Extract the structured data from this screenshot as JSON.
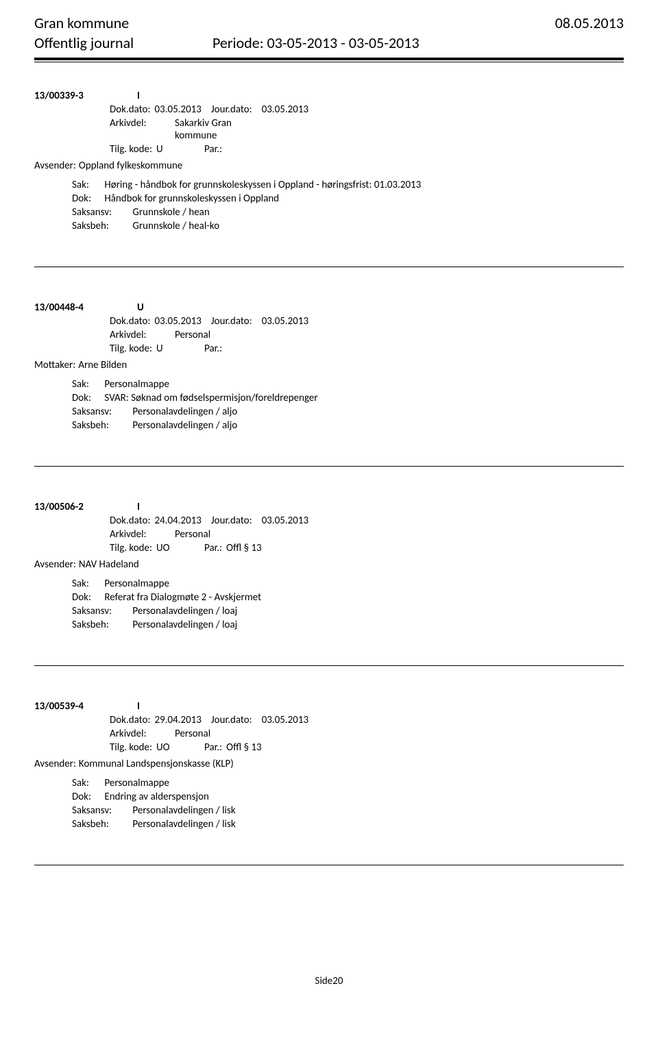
{
  "header": {
    "org": "Gran kommune",
    "date": "08.05.2013",
    "journal_label": "Offentlig journal",
    "period_label": "Periode:",
    "period_value": "03-05-2013 - 03-05-2013"
  },
  "labels": {
    "dokdato": "Dok.dato:",
    "jourdato": "Jour.dato:",
    "arkivdel": "Arkivdel:",
    "tilgkode": "Tilg. kode:",
    "par": "Par.:",
    "avsender": "Avsender:",
    "mottaker": "Mottaker:",
    "sak": "Sak:",
    "dok": "Dok:",
    "saksansv": "Saksansv:",
    "saksbeh": "Saksbeh:"
  },
  "entries": [
    {
      "caseno": "13/00339-3",
      "iotype": "I",
      "dokdato": "03.05.2013",
      "jourdato": "03.05.2013",
      "arkivdel_line1": "Sakarkiv Gran",
      "arkivdel_line2": "kommune",
      "tilgkode": "U",
      "parval": "",
      "party_label": "Avsender:",
      "party_name": "Oppland fylkeskommune",
      "sak": "Høring - håndbok for grunnskoleskyssen i Oppland - høringsfrist: 01.03.2013",
      "dok": "Håndbok for grunnskoleskyssen i Oppland",
      "saksansv": "Grunnskole / hean",
      "saksbeh": "Grunnskole / heal-ko"
    },
    {
      "caseno": "13/00448-4",
      "iotype": "U",
      "dokdato": "03.05.2013",
      "jourdato": "03.05.2013",
      "arkivdel_line1": "Personal",
      "arkivdel_line2": "",
      "tilgkode": "U",
      "parval": "",
      "party_label": "Mottaker:",
      "party_name": "Arne Bilden",
      "sak": "Personalmappe",
      "dok": "SVAR: Søknad om fødselspermisjon/foreldrepenger",
      "saksansv": "Personalavdelingen / aljo",
      "saksbeh": "Personalavdelingen / aljo"
    },
    {
      "caseno": "13/00506-2",
      "iotype": "I",
      "dokdato": "24.04.2013",
      "jourdato": "03.05.2013",
      "arkivdel_line1": "Personal",
      "arkivdel_line2": "",
      "tilgkode": "UO",
      "parval": "Offl § 13",
      "party_label": "Avsender:",
      "party_name": "NAV Hadeland",
      "sak": "Personalmappe",
      "dok": "Referat fra Dialogmøte 2    - Avskjermet",
      "saksansv": "Personalavdelingen / loaj",
      "saksbeh": "Personalavdelingen / loaj"
    },
    {
      "caseno": "13/00539-4",
      "iotype": "I",
      "dokdato": "29.04.2013",
      "jourdato": "03.05.2013",
      "arkivdel_line1": "Personal",
      "arkivdel_line2": "",
      "tilgkode": "UO",
      "parval": "Offl § 13",
      "party_label": "Avsender:",
      "party_name": "Kommunal Landspensjonskasse (KLP)",
      "sak": "Personalmappe",
      "dok": "Endring av alderspensjon",
      "saksansv": "Personalavdelingen / lisk",
      "saksbeh": "Personalavdelingen / lisk"
    }
  ],
  "footer": "Side20"
}
